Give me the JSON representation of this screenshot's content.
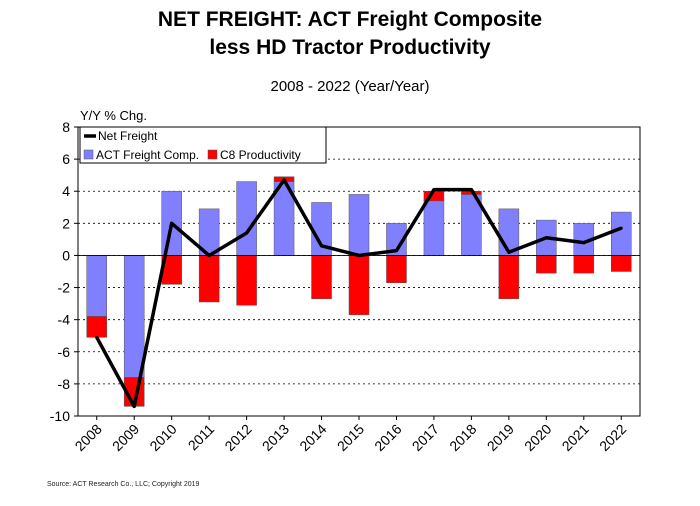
{
  "chart_data": {
    "type": "bar",
    "title_line1": "NET FREIGHT:  ACT Freight Composite",
    "title_line2": "less HD Tractor Productivity",
    "subtitle": "2008 - 2022 (Year/Year)",
    "ylabel": "Y/Y % Chg.",
    "xlabel": "",
    "ylim": [
      -10,
      8
    ],
    "yticks": [
      8,
      6,
      4,
      2,
      0,
      -2,
      -4,
      -6,
      -8,
      -10
    ],
    "grid": true,
    "legend_position": "top-left",
    "categories": [
      "2008",
      "2009",
      "2010",
      "2011",
      "2012",
      "2013",
      "2014",
      "2015",
      "2016",
      "2017",
      "2018",
      "2019",
      "2020",
      "2021",
      "2022"
    ],
    "series": [
      {
        "name": "ACT Freight Comp.",
        "kind": "bar",
        "color": "#8080ff",
        "values": [
          -3.8,
          -7.6,
          4.0,
          2.9,
          4.6,
          4.6,
          3.3,
          3.8,
          2.0,
          3.4,
          3.8,
          2.9,
          2.2,
          2.0,
          2.7
        ]
      },
      {
        "name": "C8 Productivity",
        "kind": "bar",
        "color": "#ff0000",
        "values": [
          -1.3,
          -1.8,
          -1.8,
          -2.9,
          -3.1,
          0.3,
          -2.7,
          -3.7,
          -1.7,
          0.6,
          0.2,
          -2.7,
          -1.1,
          -1.1,
          -1.0
        ]
      },
      {
        "name": "Net Freight",
        "kind": "line",
        "color": "#000000",
        "values": [
          -5.1,
          -9.4,
          2.0,
          0.0,
          1.4,
          4.7,
          0.6,
          0.0,
          0.3,
          4.1,
          4.1,
          0.2,
          1.1,
          0.8,
          1.7
        ]
      }
    ]
  },
  "source": "Source: ACT Research Co., LLC; Copyright 2019"
}
